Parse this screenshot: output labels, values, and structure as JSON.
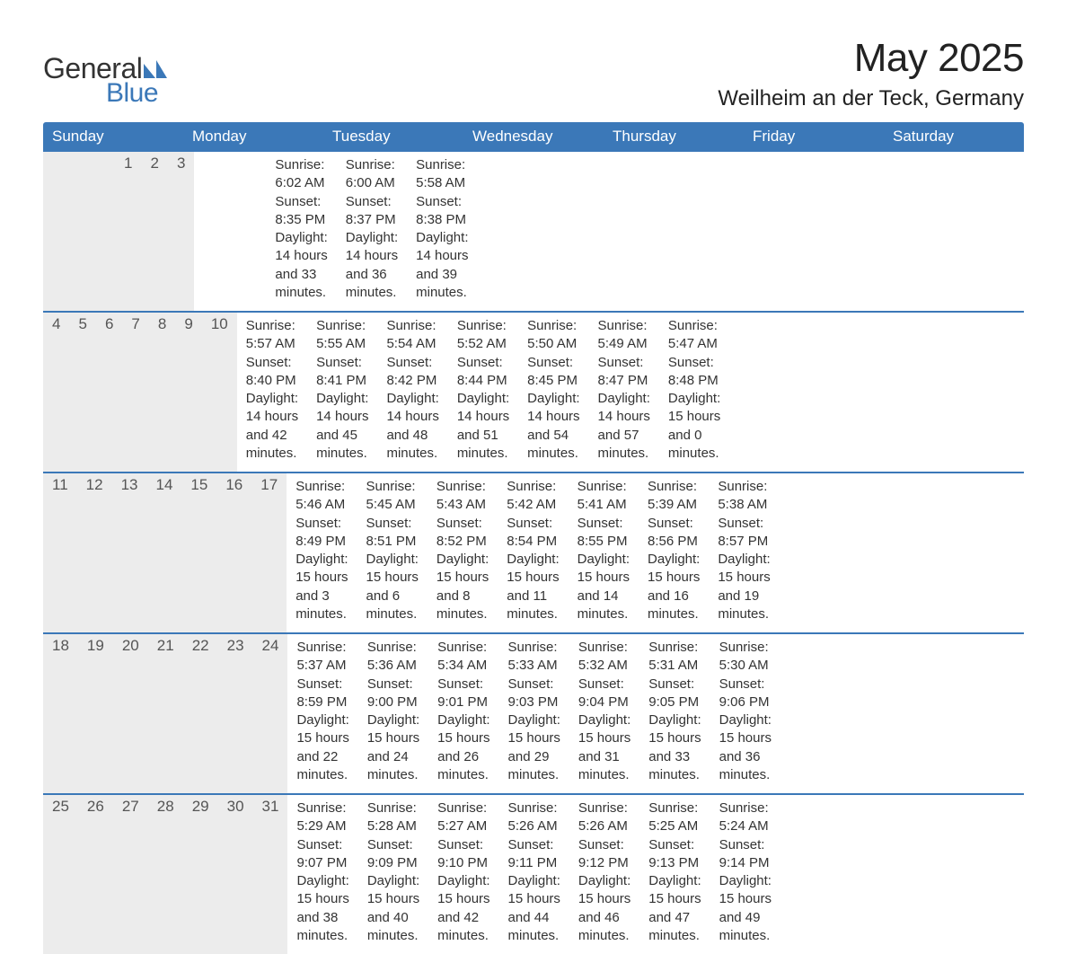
{
  "brand": {
    "general": "General",
    "blue": "Blue"
  },
  "title": "May 2025",
  "location": "Weilheim an der Teck, Germany",
  "colors": {
    "header_bg": "#3b78b8",
    "header_text": "#ffffff",
    "numrow_bg": "#ececec",
    "week_border": "#3b78b8",
    "body_text": "#333333",
    "page_bg": "#ffffff"
  },
  "day_names": [
    "Sunday",
    "Monday",
    "Tuesday",
    "Wednesday",
    "Thursday",
    "Friday",
    "Saturday"
  ],
  "weeks": [
    [
      null,
      null,
      null,
      null,
      {
        "n": "1",
        "sunrise": "6:02 AM",
        "sunset": "8:35 PM",
        "daylight": "14 hours and 33 minutes."
      },
      {
        "n": "2",
        "sunrise": "6:00 AM",
        "sunset": "8:37 PM",
        "daylight": "14 hours and 36 minutes."
      },
      {
        "n": "3",
        "sunrise": "5:58 AM",
        "sunset": "8:38 PM",
        "daylight": "14 hours and 39 minutes."
      }
    ],
    [
      {
        "n": "4",
        "sunrise": "5:57 AM",
        "sunset": "8:40 PM",
        "daylight": "14 hours and 42 minutes."
      },
      {
        "n": "5",
        "sunrise": "5:55 AM",
        "sunset": "8:41 PM",
        "daylight": "14 hours and 45 minutes."
      },
      {
        "n": "6",
        "sunrise": "5:54 AM",
        "sunset": "8:42 PM",
        "daylight": "14 hours and 48 minutes."
      },
      {
        "n": "7",
        "sunrise": "5:52 AM",
        "sunset": "8:44 PM",
        "daylight": "14 hours and 51 minutes."
      },
      {
        "n": "8",
        "sunrise": "5:50 AM",
        "sunset": "8:45 PM",
        "daylight": "14 hours and 54 minutes."
      },
      {
        "n": "9",
        "sunrise": "5:49 AM",
        "sunset": "8:47 PM",
        "daylight": "14 hours and 57 minutes."
      },
      {
        "n": "10",
        "sunrise": "5:47 AM",
        "sunset": "8:48 PM",
        "daylight": "15 hours and 0 minutes."
      }
    ],
    [
      {
        "n": "11",
        "sunrise": "5:46 AM",
        "sunset": "8:49 PM",
        "daylight": "15 hours and 3 minutes."
      },
      {
        "n": "12",
        "sunrise": "5:45 AM",
        "sunset": "8:51 PM",
        "daylight": "15 hours and 6 minutes."
      },
      {
        "n": "13",
        "sunrise": "5:43 AM",
        "sunset": "8:52 PM",
        "daylight": "15 hours and 8 minutes."
      },
      {
        "n": "14",
        "sunrise": "5:42 AM",
        "sunset": "8:54 PM",
        "daylight": "15 hours and 11 minutes."
      },
      {
        "n": "15",
        "sunrise": "5:41 AM",
        "sunset": "8:55 PM",
        "daylight": "15 hours and 14 minutes."
      },
      {
        "n": "16",
        "sunrise": "5:39 AM",
        "sunset": "8:56 PM",
        "daylight": "15 hours and 16 minutes."
      },
      {
        "n": "17",
        "sunrise": "5:38 AM",
        "sunset": "8:57 PM",
        "daylight": "15 hours and 19 minutes."
      }
    ],
    [
      {
        "n": "18",
        "sunrise": "5:37 AM",
        "sunset": "8:59 PM",
        "daylight": "15 hours and 22 minutes."
      },
      {
        "n": "19",
        "sunrise": "5:36 AM",
        "sunset": "9:00 PM",
        "daylight": "15 hours and 24 minutes."
      },
      {
        "n": "20",
        "sunrise": "5:34 AM",
        "sunset": "9:01 PM",
        "daylight": "15 hours and 26 minutes."
      },
      {
        "n": "21",
        "sunrise": "5:33 AM",
        "sunset": "9:03 PM",
        "daylight": "15 hours and 29 minutes."
      },
      {
        "n": "22",
        "sunrise": "5:32 AM",
        "sunset": "9:04 PM",
        "daylight": "15 hours and 31 minutes."
      },
      {
        "n": "23",
        "sunrise": "5:31 AM",
        "sunset": "9:05 PM",
        "daylight": "15 hours and 33 minutes."
      },
      {
        "n": "24",
        "sunrise": "5:30 AM",
        "sunset": "9:06 PM",
        "daylight": "15 hours and 36 minutes."
      }
    ],
    [
      {
        "n": "25",
        "sunrise": "5:29 AM",
        "sunset": "9:07 PM",
        "daylight": "15 hours and 38 minutes."
      },
      {
        "n": "26",
        "sunrise": "5:28 AM",
        "sunset": "9:09 PM",
        "daylight": "15 hours and 40 minutes."
      },
      {
        "n": "27",
        "sunrise": "5:27 AM",
        "sunset": "9:10 PM",
        "daylight": "15 hours and 42 minutes."
      },
      {
        "n": "28",
        "sunrise": "5:26 AM",
        "sunset": "9:11 PM",
        "daylight": "15 hours and 44 minutes."
      },
      {
        "n": "29",
        "sunrise": "5:26 AM",
        "sunset": "9:12 PM",
        "daylight": "15 hours and 46 minutes."
      },
      {
        "n": "30",
        "sunrise": "5:25 AM",
        "sunset": "9:13 PM",
        "daylight": "15 hours and 47 minutes."
      },
      {
        "n": "31",
        "sunrise": "5:24 AM",
        "sunset": "9:14 PM",
        "daylight": "15 hours and 49 minutes."
      }
    ]
  ],
  "labels": {
    "sunrise": "Sunrise: ",
    "sunset": "Sunset: ",
    "daylight": "Daylight: "
  }
}
